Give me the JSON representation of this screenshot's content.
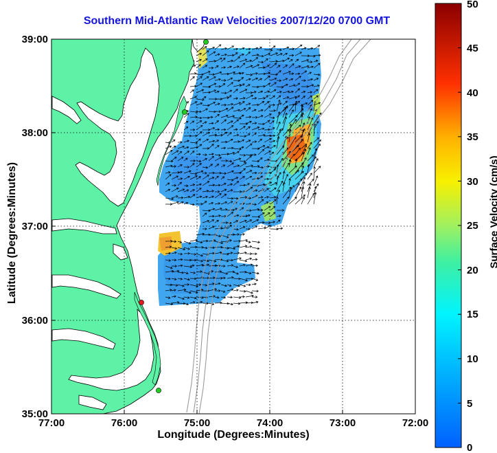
{
  "map": {
    "title": "Southern Mid-Atlantic Raw Velocities 2007/12/20 0700 GMT",
    "xlabel": "Longitude (Degrees:Minutes)",
    "ylabel": "Latitude (Degrees:Minutes)",
    "x_ticks": [
      "77:00",
      "76:00",
      "75:00",
      "74:00",
      "73:00",
      "72:00"
    ],
    "y_ticks": [
      "39:00",
      "38:00",
      "37:00",
      "36:00",
      "35:00"
    ],
    "extent": {
      "lon": [
        -77,
        -72
      ],
      "lat": [
        35,
        39
      ]
    },
    "land_color": "#5df2a6",
    "grid": "dotted"
  },
  "colorbar": {
    "label": "Surface Velocity (cm/s)",
    "ticks": [
      "50",
      "45",
      "40",
      "35",
      "30",
      "25",
      "20",
      "15",
      "10",
      "5",
      "0"
    ],
    "range": [
      0,
      50
    ],
    "colormap": "jet"
  },
  "stations": [
    {
      "color": "#22cc22",
      "lon": -74.87,
      "lat": 38.95
    },
    {
      "color": "#22cc22",
      "lon": -75.15,
      "lat": 38.2
    },
    {
      "color": "#e01a1a",
      "lon": -75.75,
      "lat": 36.18
    },
    {
      "color": "#22cc22",
      "lon": -75.45,
      "lat": 35.25
    }
  ]
}
